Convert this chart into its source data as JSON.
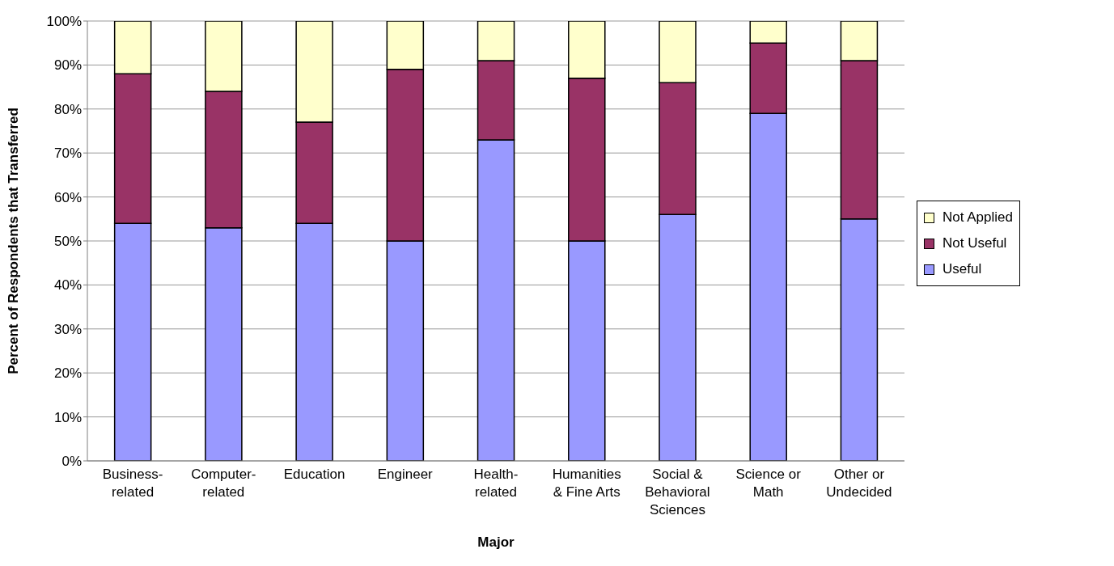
{
  "chart_data": {
    "type": "bar",
    "stacked": true,
    "xlabel": "Major",
    "ylabel": "Percent of Respondents that Transferred",
    "categories": [
      "Business-related",
      "Computer-related",
      "Education",
      "Engineer",
      "Health-related",
      "Humanities & Fine Arts",
      "Social & Behavioral Sciences",
      "Science or Math",
      "Other or Undecided"
    ],
    "series": [
      {
        "name": "Useful",
        "color": "#9999ff",
        "values": [
          54,
          53,
          54,
          50,
          73,
          50,
          56,
          79,
          55
        ]
      },
      {
        "name": "Not Useful",
        "color": "#993366",
        "values": [
          34,
          31,
          23,
          39,
          18,
          37,
          30,
          16,
          36
        ]
      },
      {
        "name": "Not Applied",
        "color": "#ffffcc",
        "values": [
          12,
          16,
          23,
          11,
          9,
          13,
          14,
          5,
          9
        ]
      }
    ],
    "ylim": [
      0,
      100
    ],
    "yticks": [
      {
        "value": 0,
        "label": "0%"
      },
      {
        "value": 10,
        "label": "10%"
      },
      {
        "value": 20,
        "label": "20%"
      },
      {
        "value": 30,
        "label": "30%"
      },
      {
        "value": 40,
        "label": "40%"
      },
      {
        "value": 50,
        "label": "50%"
      },
      {
        "value": 60,
        "label": "60%"
      },
      {
        "value": 70,
        "label": "70%"
      },
      {
        "value": 80,
        "label": "80%"
      },
      {
        "value": 90,
        "label": "90%"
      },
      {
        "value": 100,
        "label": "100%"
      }
    ],
    "grid": "y",
    "legend": "right"
  }
}
